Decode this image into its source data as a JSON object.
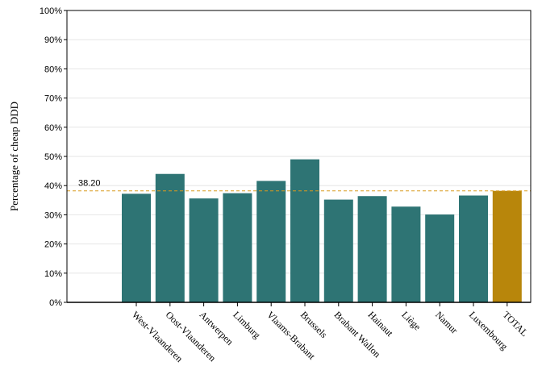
{
  "chart_data": {
    "type": "bar",
    "title": "",
    "xlabel": "",
    "ylabel": "Percentage of cheap DDD",
    "categories": [
      "West-Vlaanderen",
      "Oost-Vlaanderen",
      "Antwerpen",
      "Limburg",
      "Vlaams-Brabant",
      "Brussels",
      "Brabant Wallon",
      "Hainaut",
      "Liège",
      "Namur",
      "Luxembourg",
      "TOTAL"
    ],
    "values": [
      37.2,
      44.0,
      35.6,
      37.4,
      41.6,
      49.0,
      35.2,
      36.4,
      32.8,
      30.1,
      36.6,
      38.2
    ],
    "ylim": [
      0,
      100
    ],
    "yticks": [
      0,
      10,
      20,
      30,
      40,
      50,
      60,
      70,
      80,
      90,
      100
    ],
    "ytick_labels": [
      "0%",
      "10%",
      "20%",
      "30%",
      "40%",
      "50%",
      "60%",
      "70%",
      "80%",
      "90%",
      "100%"
    ],
    "reference_line": {
      "value": 38.2,
      "label": "38.20",
      "color": "#d89a1e"
    },
    "colors": {
      "bar": "#2e7474",
      "highlight": "#b8860b",
      "grid": "#e6e6e6"
    },
    "highlight_category": "TOTAL",
    "grid": true,
    "legend": "none"
  }
}
